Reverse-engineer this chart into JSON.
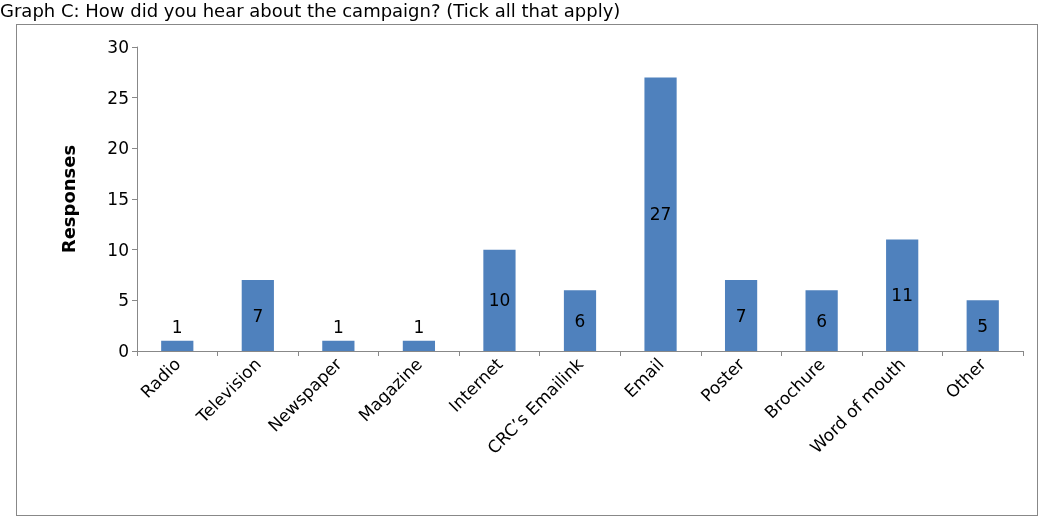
{
  "chart_data": {
    "type": "bar",
    "title": "Graph C: How did you hear about the campaign? (Tick all that apply)",
    "ylabel": "Responses",
    "categories": [
      "Radio",
      "Television",
      "Newspaper",
      "Magazine",
      "Internet",
      "CRC’s Emailink",
      "Email",
      "Poster",
      "Brochure",
      "Word of mouth",
      "Other"
    ],
    "values": [
      1,
      7,
      1,
      1,
      10,
      6,
      27,
      7,
      6,
      11,
      5
    ],
    "color": "#4f81bd",
    "ylim": [
      0,
      30
    ],
    "yticks": [
      0,
      5,
      10,
      15,
      20,
      25,
      30
    ],
    "grid": false,
    "data_labels": true
  }
}
